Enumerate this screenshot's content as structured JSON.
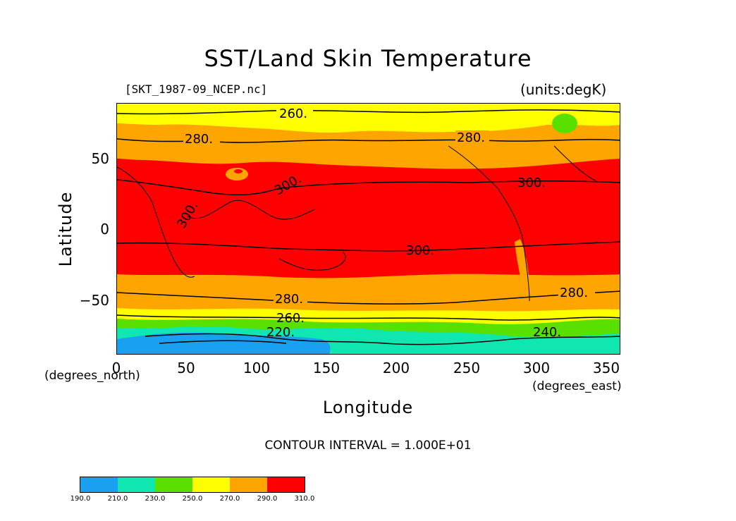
{
  "title": "SST/Land Skin Temperature",
  "file_label": "[SKT_1987-09_NCEP.nc]",
  "units_label": "(units:degK)",
  "y_axis": {
    "label": "Latitude",
    "unit": "(degrees_north)",
    "ticks": [
      "50",
      "0",
      "−50"
    ]
  },
  "x_axis": {
    "label": "Longitude",
    "unit": "(degrees_east)",
    "ticks": [
      "0",
      "50",
      "100",
      "150",
      "200",
      "250",
      "300",
      "350"
    ]
  },
  "contour_interval": "CONTOUR INTERVAL = 1.000E+01",
  "contour_labels": [
    "260.",
    "280.",
    "280.",
    "300.",
    "300.",
    "300.",
    "300.",
    "280.",
    "280.",
    "260.",
    "220.",
    "240."
  ],
  "colorbar": {
    "labels": [
      "190.0",
      "210.0",
      "230.0",
      "250.0",
      "270.0",
      "290.0",
      "310.0"
    ],
    "colors": [
      "#1aa0f0",
      "#10e6b0",
      "#58e000",
      "#ffff00",
      "#ffa500",
      "#ff0000"
    ]
  },
  "map_colors": {
    "ocean_warm": "#ff0000",
    "mid": "#ffa500",
    "cool": "#ffff00",
    "cold": "#58e000",
    "colder": "#10e6b0",
    "coldest": "#1aa0f0"
  }
}
